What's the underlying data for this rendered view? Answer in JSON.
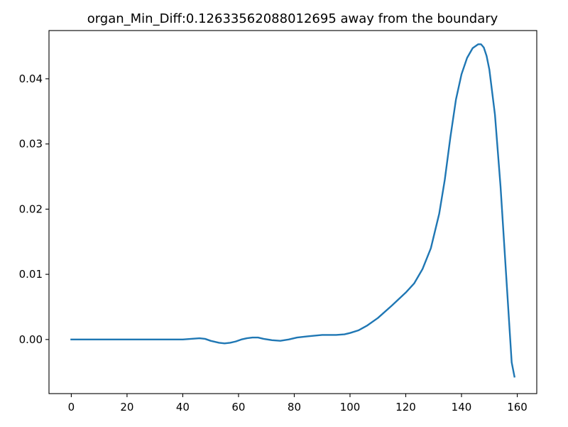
{
  "chart_data": {
    "type": "line",
    "title": "organ_Min_Diff:0.12633562088012695 away from the boundary",
    "xlabel": "",
    "ylabel": "",
    "xlim": [
      -8,
      167
    ],
    "ylim": [
      -0.0083,
      0.0474
    ],
    "grid": false,
    "legend": "none",
    "xticks": [
      0,
      20,
      40,
      60,
      80,
      100,
      120,
      140,
      160
    ],
    "xtick_labels": [
      "0",
      "20",
      "40",
      "60",
      "80",
      "100",
      "120",
      "140",
      "160"
    ],
    "yticks": [
      0.0,
      0.01,
      0.02,
      0.03,
      0.04
    ],
    "ytick_labels": [
      "0.00",
      "0.01",
      "0.02",
      "0.03",
      "0.04"
    ],
    "series": [
      {
        "name": "organ_Min_Diff",
        "color": "#1f77b4",
        "x": [
          0,
          10,
          20,
          30,
          40,
          43,
          46,
          48,
          50,
          53,
          55,
          57,
          59,
          61,
          63,
          65,
          67,
          69,
          72,
          75,
          78,
          81,
          85,
          90,
          95,
          98,
          100,
          103,
          106,
          110,
          115,
          120,
          123,
          126,
          129,
          132,
          134,
          136,
          138,
          140,
          142,
          144,
          146,
          147,
          148,
          149,
          150,
          152,
          154,
          156,
          158,
          159
        ],
        "y": [
          0.0,
          0.0,
          0.0,
          0.0,
          0.0,
          0.0001,
          0.0002,
          0.0001,
          -0.0002,
          -0.0005,
          -0.0006,
          -0.0005,
          -0.0003,
          0.0,
          0.0002,
          0.0003,
          0.0003,
          0.0001,
          -0.0001,
          -0.0002,
          0.0,
          0.0003,
          0.0005,
          0.0007,
          0.0007,
          0.0008,
          0.001,
          0.0014,
          0.0021,
          0.0033,
          0.0052,
          0.0072,
          0.0086,
          0.0108,
          0.014,
          0.0193,
          0.0245,
          0.031,
          0.0368,
          0.0407,
          0.0432,
          0.0447,
          0.0453,
          0.0453,
          0.0448,
          0.0435,
          0.0414,
          0.0345,
          0.0235,
          0.01,
          -0.0035,
          -0.0057
        ]
      }
    ]
  }
}
